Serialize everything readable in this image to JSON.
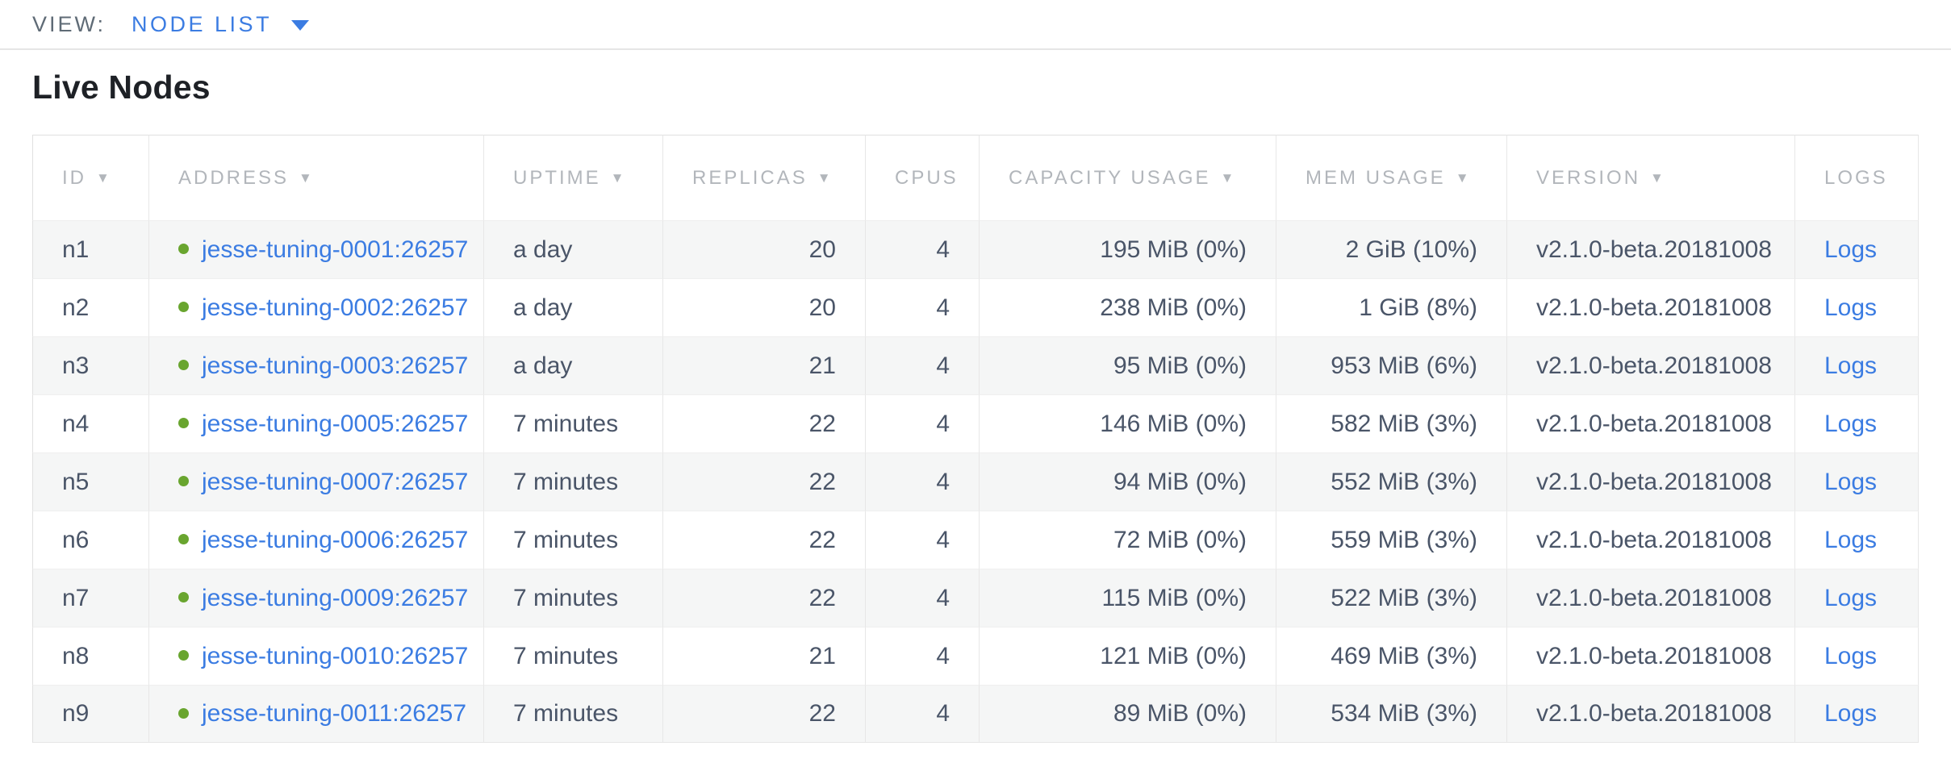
{
  "view_bar": {
    "label": "VIEW:",
    "selected": "NODE LIST"
  },
  "page": {
    "title": "Live Nodes"
  },
  "colors": {
    "link_blue": "#3b7ce2",
    "health_green": "#69a52f",
    "header_gray": "#b2b6bb",
    "text_slate": "#4a5568",
    "stripe_gray": "#f5f6f6"
  },
  "table": {
    "sort_arrow": "▼",
    "columns": [
      {
        "key": "id",
        "label": "ID",
        "sortable": true
      },
      {
        "key": "address",
        "label": "ADDRESS",
        "sortable": true
      },
      {
        "key": "uptime",
        "label": "UPTIME",
        "sortable": true
      },
      {
        "key": "replicas",
        "label": "REPLICAS",
        "sortable": true
      },
      {
        "key": "cpus",
        "label": "CPUS",
        "sortable": false
      },
      {
        "key": "capacity",
        "label": "CAPACITY USAGE",
        "sortable": true
      },
      {
        "key": "mem",
        "label": "MEM USAGE",
        "sortable": true
      },
      {
        "key": "version",
        "label": "VERSION",
        "sortable": true
      },
      {
        "key": "logs",
        "label": "LOGS",
        "sortable": false
      }
    ],
    "rows": [
      {
        "id": "n1",
        "status": "healthy",
        "address": "jesse-tuning-0001:26257",
        "uptime": "a day",
        "replicas": "20",
        "cpus": "4",
        "capacity": "195 MiB (0%)",
        "mem": "2 GiB (10%)",
        "version": "v2.1.0-beta.20181008",
        "logs": "Logs"
      },
      {
        "id": "n2",
        "status": "healthy",
        "address": "jesse-tuning-0002:26257",
        "uptime": "a day",
        "replicas": "20",
        "cpus": "4",
        "capacity": "238 MiB (0%)",
        "mem": "1 GiB (8%)",
        "version": "v2.1.0-beta.20181008",
        "logs": "Logs"
      },
      {
        "id": "n3",
        "status": "healthy",
        "address": "jesse-tuning-0003:26257",
        "uptime": "a day",
        "replicas": "21",
        "cpus": "4",
        "capacity": "95 MiB (0%)",
        "mem": "953 MiB (6%)",
        "version": "v2.1.0-beta.20181008",
        "logs": "Logs"
      },
      {
        "id": "n4",
        "status": "healthy",
        "address": "jesse-tuning-0005:26257",
        "uptime": "7 minutes",
        "replicas": "22",
        "cpus": "4",
        "capacity": "146 MiB (0%)",
        "mem": "582 MiB (3%)",
        "version": "v2.1.0-beta.20181008",
        "logs": "Logs"
      },
      {
        "id": "n5",
        "status": "healthy",
        "address": "jesse-tuning-0007:26257",
        "uptime": "7 minutes",
        "replicas": "22",
        "cpus": "4",
        "capacity": "94 MiB (0%)",
        "mem": "552 MiB (3%)",
        "version": "v2.1.0-beta.20181008",
        "logs": "Logs"
      },
      {
        "id": "n6",
        "status": "healthy",
        "address": "jesse-tuning-0006:26257",
        "uptime": "7 minutes",
        "replicas": "22",
        "cpus": "4",
        "capacity": "72 MiB (0%)",
        "mem": "559 MiB (3%)",
        "version": "v2.1.0-beta.20181008",
        "logs": "Logs"
      },
      {
        "id": "n7",
        "status": "healthy",
        "address": "jesse-tuning-0009:26257",
        "uptime": "7 minutes",
        "replicas": "22",
        "cpus": "4",
        "capacity": "115 MiB (0%)",
        "mem": "522 MiB (3%)",
        "version": "v2.1.0-beta.20181008",
        "logs": "Logs"
      },
      {
        "id": "n8",
        "status": "healthy",
        "address": "jesse-tuning-0010:26257",
        "uptime": "7 minutes",
        "replicas": "21",
        "cpus": "4",
        "capacity": "121 MiB (0%)",
        "mem": "469 MiB (3%)",
        "version": "v2.1.0-beta.20181008",
        "logs": "Logs"
      },
      {
        "id": "n9",
        "status": "healthy",
        "address": "jesse-tuning-0011:26257",
        "uptime": "7 minutes",
        "replicas": "22",
        "cpus": "4",
        "capacity": "89 MiB (0%)",
        "mem": "534 MiB (3%)",
        "version": "v2.1.0-beta.20181008",
        "logs": "Logs"
      }
    ]
  }
}
